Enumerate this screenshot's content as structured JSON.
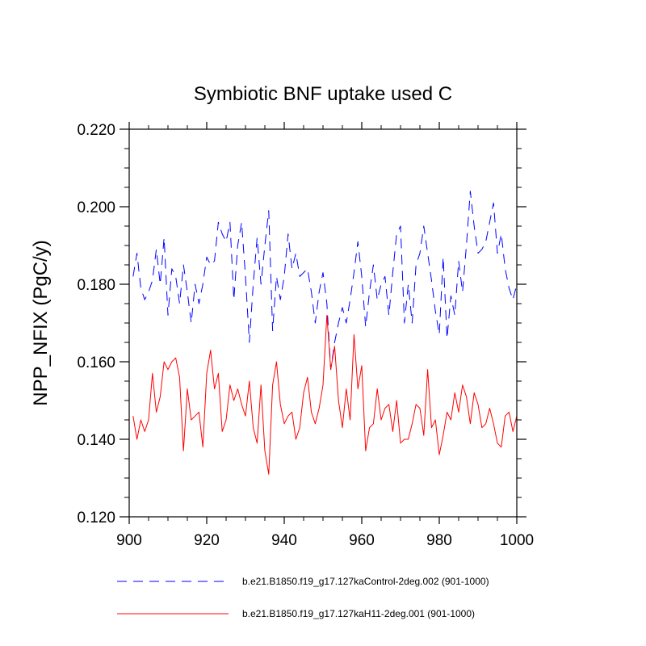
{
  "chart_data": {
    "type": "line",
    "title": "Symbiotic BNF uptake used C",
    "xlabel": "",
    "ylabel": "NPP_NFIX  (PgC/y)",
    "xlim": [
      900,
      1000
    ],
    "ylim": [
      0.12,
      0.22
    ],
    "xticks": [
      900,
      920,
      940,
      960,
      980,
      1000
    ],
    "xtick_labels": [
      "900",
      "920",
      "940",
      "960",
      "980",
      "1000"
    ],
    "yticks": [
      0.12,
      0.14,
      0.16,
      0.18,
      0.2,
      0.22
    ],
    "ytick_labels": [
      "0.120",
      "0.140",
      "0.160",
      "0.180",
      "0.200",
      "0.220"
    ],
    "grid": false,
    "legend_position": "bottom",
    "x": [
      901,
      902,
      903,
      904,
      905,
      906,
      907,
      908,
      909,
      910,
      911,
      912,
      913,
      914,
      915,
      916,
      917,
      918,
      919,
      920,
      921,
      922,
      923,
      924,
      925,
      926,
      927,
      928,
      929,
      930,
      931,
      932,
      933,
      934,
      935,
      936,
      937,
      938,
      939,
      940,
      941,
      942,
      943,
      944,
      945,
      946,
      947,
      948,
      949,
      950,
      951,
      952,
      953,
      954,
      955,
      956,
      957,
      958,
      959,
      960,
      961,
      962,
      963,
      964,
      965,
      966,
      967,
      968,
      969,
      970,
      971,
      972,
      973,
      974,
      975,
      976,
      977,
      978,
      979,
      980,
      981,
      982,
      983,
      984,
      985,
      986,
      987,
      988,
      989,
      990,
      991,
      992,
      993,
      994,
      995,
      996,
      997,
      998,
      999,
      1000
    ],
    "series": [
      {
        "name": "b.e21.B1850.f19_g17.127kaControl-2deg.002 (901-1000)",
        "color": "#0000ff",
        "dash": "dashed",
        "values": [
          0.182,
          0.188,
          0.179,
          0.176,
          0.178,
          0.181,
          0.189,
          0.18,
          0.192,
          0.172,
          0.184,
          0.182,
          0.175,
          0.185,
          0.178,
          0.17,
          0.18,
          0.175,
          0.18,
          0.187,
          0.185,
          0.186,
          0.196,
          0.193,
          0.191,
          0.196,
          0.176,
          0.19,
          0.196,
          0.182,
          0.165,
          0.18,
          0.192,
          0.18,
          0.19,
          0.199,
          0.168,
          0.182,
          0.176,
          0.182,
          0.193,
          0.184,
          0.188,
          0.182,
          0.183,
          0.184,
          0.178,
          0.17,
          0.178,
          0.183,
          0.175,
          0.158,
          0.165,
          0.17,
          0.174,
          0.17,
          0.176,
          0.183,
          0.191,
          0.182,
          0.169,
          0.178,
          0.185,
          0.176,
          0.18,
          0.182,
          0.172,
          0.183,
          0.193,
          0.195,
          0.17,
          0.18,
          0.17,
          0.185,
          0.188,
          0.195,
          0.188,
          0.181,
          0.173,
          0.167,
          0.187,
          0.166,
          0.177,
          0.172,
          0.186,
          0.178,
          0.19,
          0.204,
          0.195,
          0.188,
          0.189,
          0.191,
          0.196,
          0.201,
          0.188,
          0.193,
          0.184,
          0.179,
          0.176,
          0.18
        ]
      },
      {
        "name": "b.e21.B1850.f19_g17.127kaH11-2deg.001 (901-1000)",
        "color": "#ff0000",
        "dash": "solid",
        "values": [
          0.146,
          0.14,
          0.145,
          0.142,
          0.145,
          0.157,
          0.147,
          0.151,
          0.16,
          0.158,
          0.16,
          0.161,
          0.156,
          0.137,
          0.153,
          0.145,
          0.146,
          0.147,
          0.138,
          0.157,
          0.163,
          0.153,
          0.157,
          0.142,
          0.145,
          0.154,
          0.15,
          0.153,
          0.149,
          0.146,
          0.155,
          0.143,
          0.139,
          0.154,
          0.137,
          0.131,
          0.154,
          0.16,
          0.149,
          0.144,
          0.146,
          0.147,
          0.14,
          0.143,
          0.152,
          0.156,
          0.147,
          0.144,
          0.148,
          0.154,
          0.172,
          0.158,
          0.164,
          0.15,
          0.143,
          0.153,
          0.145,
          0.167,
          0.153,
          0.159,
          0.137,
          0.143,
          0.144,
          0.153,
          0.145,
          0.148,
          0.149,
          0.142,
          0.15,
          0.139,
          0.14,
          0.14,
          0.144,
          0.149,
          0.148,
          0.141,
          0.158,
          0.143,
          0.145,
          0.136,
          0.141,
          0.147,
          0.145,
          0.152,
          0.147,
          0.154,
          0.151,
          0.144,
          0.152,
          0.149,
          0.143,
          0.144,
          0.148,
          0.144,
          0.139,
          0.138,
          0.146,
          0.147,
          0.142,
          0.146
        ]
      }
    ]
  }
}
